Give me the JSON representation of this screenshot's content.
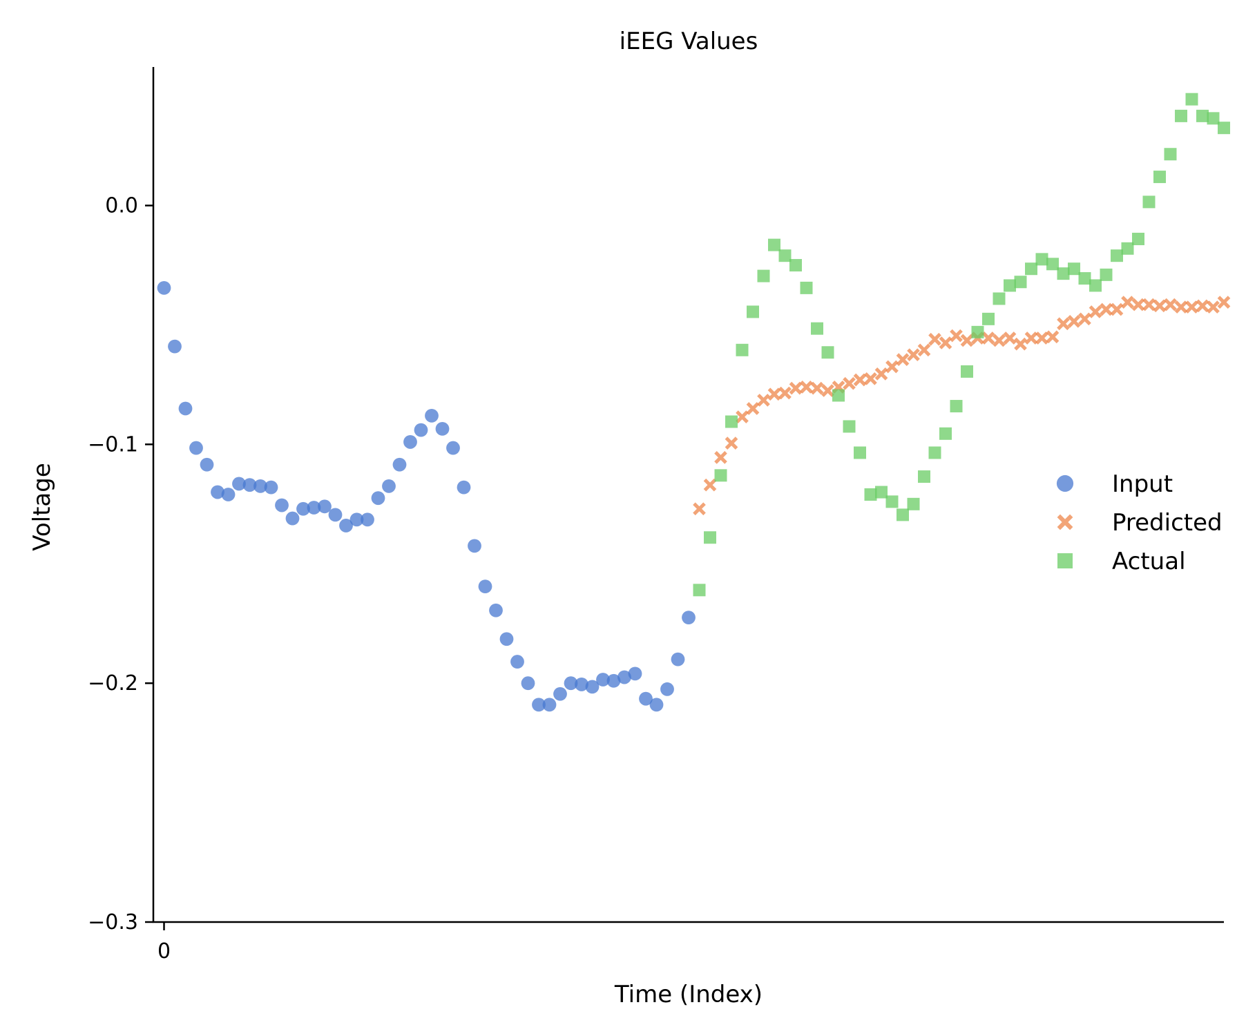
{
  "chart_data": {
    "type": "scatter",
    "title": "iEEG Values",
    "xlabel": "Time (Index)",
    "ylabel": "Voltage",
    "xlim": [
      -1,
      99
    ],
    "ylim": [
      -0.3,
      0.058
    ],
    "xticks": [
      0
    ],
    "xtick_labels": [
      "0"
    ],
    "yticks": [
      0.0,
      -0.1,
      -0.2,
      -0.3
    ],
    "ytick_labels": [
      "0.0",
      "−0.1",
      "−0.2",
      "−0.3"
    ],
    "grid": false,
    "legend_position": "center-right",
    "series": [
      {
        "name": "Input",
        "marker": "circle",
        "color": "#4878d0",
        "x": [
          0,
          1,
          2,
          3,
          4,
          5,
          6,
          7,
          8,
          9,
          10,
          11,
          12,
          13,
          14,
          15,
          16,
          17,
          18,
          19,
          20,
          21,
          22,
          23,
          24,
          25,
          26,
          27,
          28,
          29,
          30,
          31,
          32,
          33,
          34,
          35,
          36,
          37,
          38,
          39,
          40,
          41,
          42,
          43,
          44,
          45,
          46,
          47,
          48,
          49
        ],
        "y": [
          -0.0345,
          -0.059,
          -0.085,
          -0.1015,
          -0.1085,
          -0.12,
          -0.121,
          -0.1165,
          -0.117,
          -0.1175,
          -0.118,
          -0.1255,
          -0.131,
          -0.127,
          -0.1265,
          -0.126,
          -0.1295,
          -0.134,
          -0.1315,
          -0.1315,
          -0.1225,
          -0.1175,
          -0.1085,
          -0.099,
          -0.094,
          -0.088,
          -0.0935,
          -0.1015,
          -0.118,
          -0.1425,
          -0.1595,
          -0.1695,
          -0.1815,
          -0.191,
          -0.2,
          -0.209,
          -0.209,
          -0.2045,
          -0.2,
          -0.2005,
          -0.2015,
          -0.1985,
          -0.199,
          -0.1975,
          -0.196,
          -0.2065,
          -0.209,
          -0.2025,
          -0.19,
          -0.1725
        ]
      },
      {
        "name": "Predicted",
        "marker": "x",
        "color": "#ee854a",
        "x": [
          50,
          51,
          52,
          53,
          54,
          55,
          56,
          57,
          58,
          59,
          60,
          61,
          62,
          63,
          64,
          65,
          66,
          67,
          68,
          69,
          70,
          71,
          72,
          73,
          74,
          75,
          76,
          77,
          78,
          79,
          80,
          81,
          82,
          83,
          84,
          85,
          86,
          87,
          88,
          89,
          90,
          91,
          92,
          93,
          94,
          95,
          96,
          97,
          98,
          99
        ],
        "y": [
          -0.127,
          -0.117,
          -0.1055,
          -0.0995,
          -0.0885,
          -0.085,
          -0.0815,
          -0.079,
          -0.0785,
          -0.0765,
          -0.076,
          -0.0765,
          -0.0775,
          -0.076,
          -0.0745,
          -0.073,
          -0.0725,
          -0.0705,
          -0.0675,
          -0.0645,
          -0.0625,
          -0.0605,
          -0.056,
          -0.0575,
          -0.0545,
          -0.0565,
          -0.0555,
          -0.0555,
          -0.0565,
          -0.0555,
          -0.058,
          -0.0555,
          -0.0555,
          -0.055,
          -0.0495,
          -0.0485,
          -0.0475,
          -0.0445,
          -0.0435,
          -0.0435,
          -0.0405,
          -0.0415,
          -0.0415,
          -0.042,
          -0.0415,
          -0.0425,
          -0.0425,
          -0.042,
          -0.0425,
          -0.0405
        ]
      },
      {
        "name": "Actual",
        "marker": "square",
        "color": "#6acc64",
        "x": [
          50,
          51,
          52,
          53,
          54,
          55,
          56,
          57,
          58,
          59,
          60,
          61,
          62,
          63,
          64,
          65,
          66,
          67,
          68,
          69,
          70,
          71,
          72,
          73,
          74,
          75,
          76,
          77,
          78,
          79,
          80,
          81,
          82,
          83,
          84,
          85,
          86,
          87,
          88,
          89,
          90,
          91,
          92,
          93,
          94,
          95,
          96,
          97,
          98,
          99
        ],
        "y": [
          -0.161,
          -0.139,
          -0.113,
          -0.0905,
          -0.0605,
          -0.0445,
          -0.0295,
          -0.0165,
          -0.021,
          -0.025,
          -0.0345,
          -0.0515,
          -0.0615,
          -0.0795,
          -0.0925,
          -0.1035,
          -0.121,
          -0.12,
          -0.124,
          -0.1295,
          -0.125,
          -0.1135,
          -0.1035,
          -0.0955,
          -0.084,
          -0.0695,
          -0.053,
          -0.0475,
          -0.039,
          -0.0335,
          -0.032,
          -0.0265,
          -0.0225,
          -0.0245,
          -0.0285,
          -0.0265,
          -0.0305,
          -0.0335,
          -0.029,
          -0.021,
          -0.018,
          -0.014,
          0.0015,
          0.012,
          0.0215,
          0.0375,
          0.0445,
          0.0375,
          0.0365,
          0.0325
        ]
      }
    ]
  }
}
